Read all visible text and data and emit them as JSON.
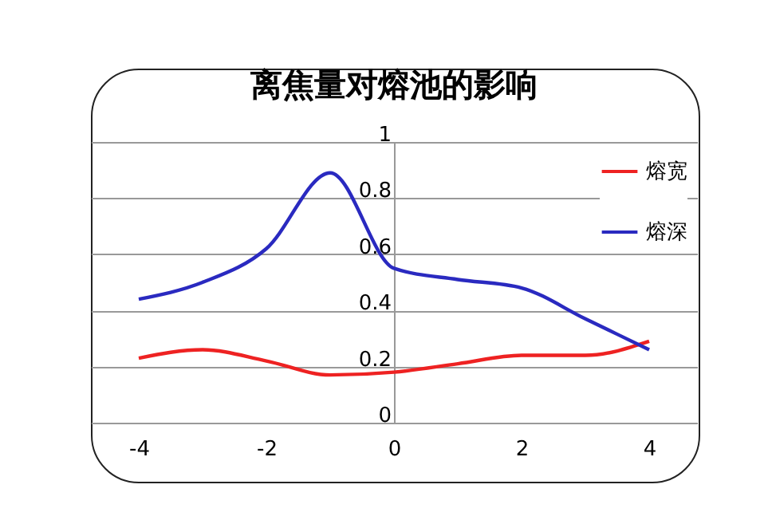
{
  "chart_data": {
    "type": "line",
    "title": "离焦量对熔池的影响",
    "x": [
      -4,
      -3,
      -2,
      -1,
      0,
      1,
      2,
      3,
      4
    ],
    "series": [
      {
        "name": "熔宽",
        "color": "#ee2222",
        "values": [
          0.23,
          0.26,
          0.22,
          0.17,
          0.18,
          0.21,
          0.24,
          0.24,
          0.29
        ]
      },
      {
        "name": "熔深",
        "color": "#2a2ac0",
        "values": [
          0.44,
          0.5,
          0.62,
          0.89,
          0.55,
          0.51,
          0.48,
          0.37,
          0.26
        ]
      }
    ],
    "xlim": [
      -4.75,
      4.75
    ],
    "xticks": [
      -4,
      -2,
      0,
      2,
      4
    ],
    "ylim": [
      0,
      1
    ],
    "yticks": [
      0,
      0.2,
      0.4,
      0.6,
      0.8,
      1
    ],
    "grid": "y",
    "legend": "top right",
    "marker": "none",
    "line_style": "solid"
  }
}
